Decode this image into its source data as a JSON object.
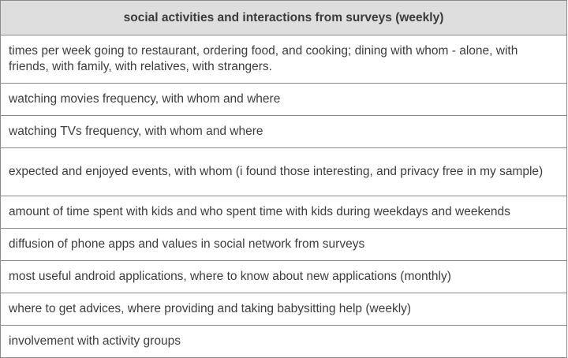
{
  "table": {
    "header": "social activities and interactions from surveys (weekly)",
    "rows": [
      "times per week going to restaurant, ordering food, and cooking; dining with whom - alone, with friends, with family, with relatives, with strangers.",
      "watching movies frequency, with whom and where",
      "watching TVs frequency, with whom and where",
      "expected and enjoyed events, with whom (i found those interesting, and privacy free in my sample)",
      "amount of time spent with kids and who spent time with kids during weekdays and weekends",
      "diffusion of phone apps and values in social network from surveys",
      "most useful android applications, where to know about new applications (monthly)",
      "where to get advices, where providing and taking babysitting help (weekly)",
      "involvement with activity groups"
    ]
  }
}
